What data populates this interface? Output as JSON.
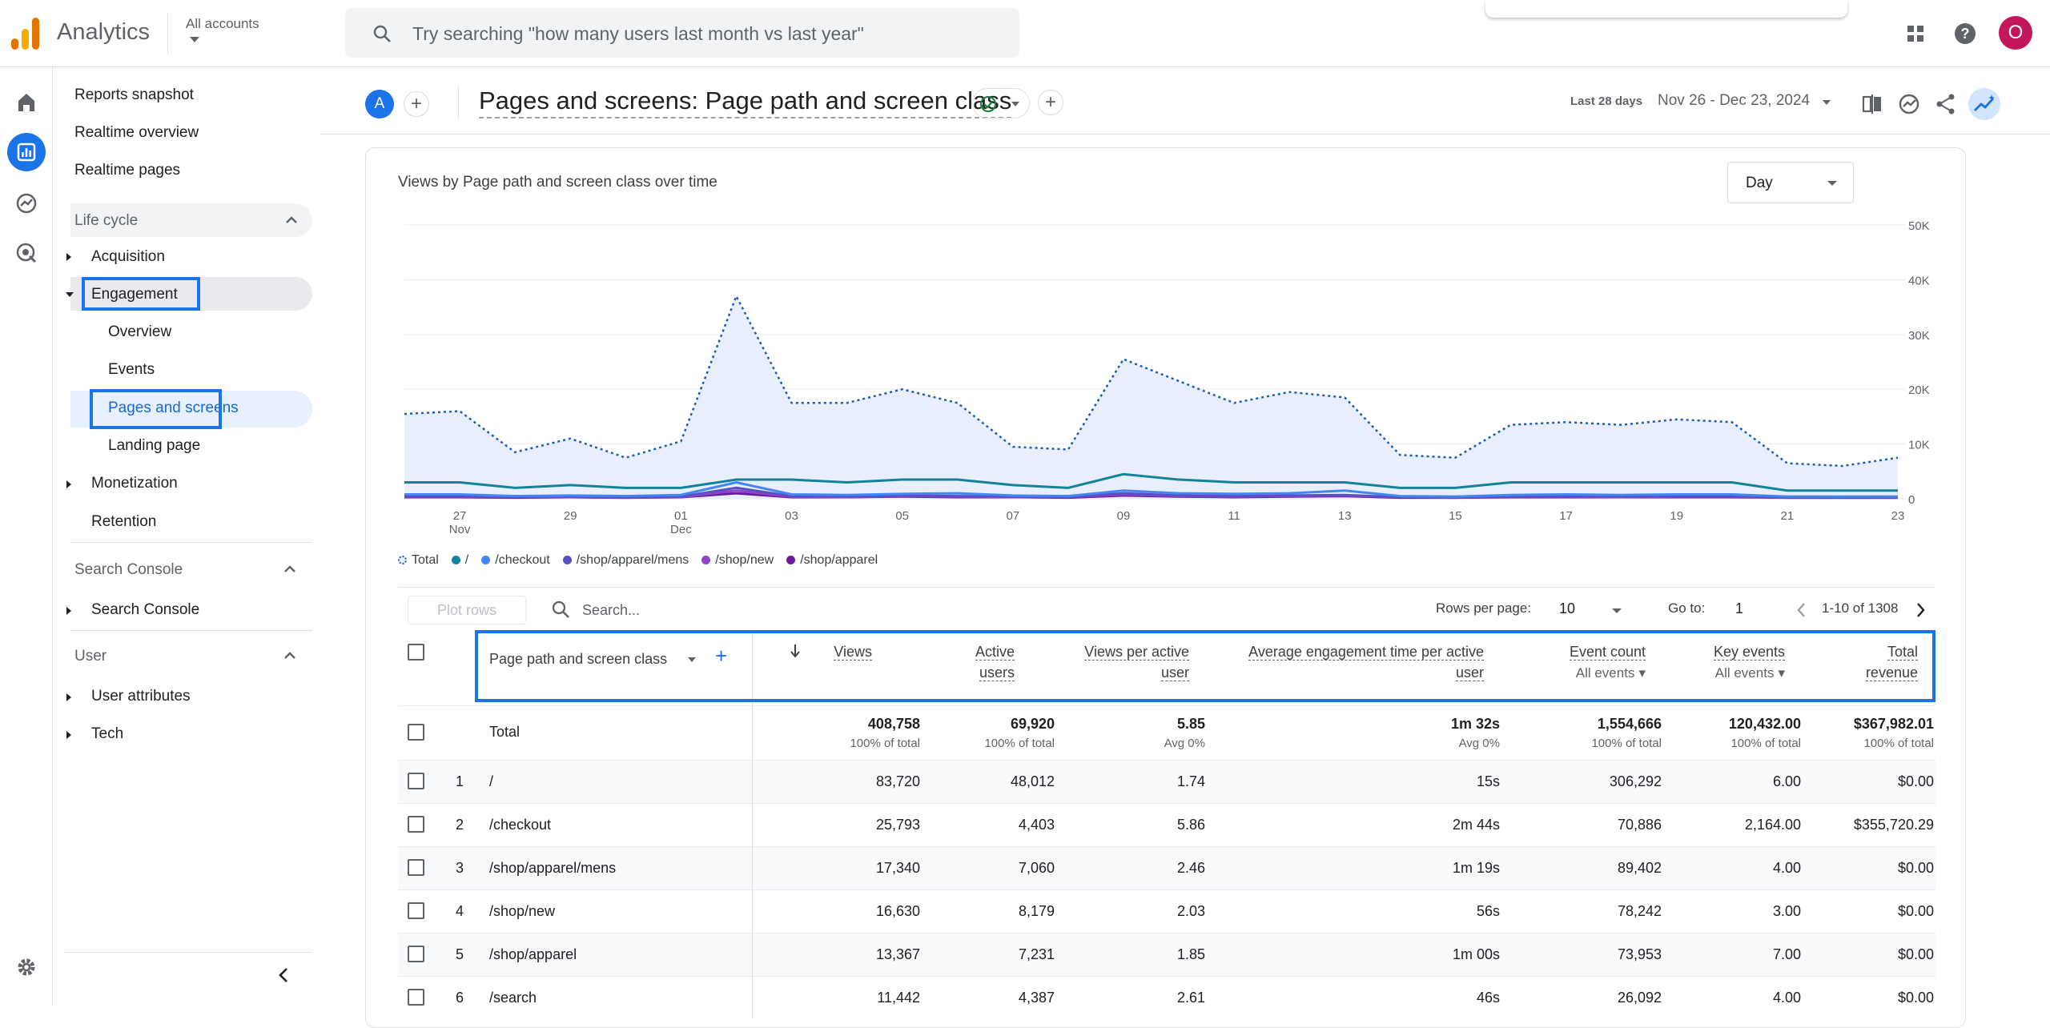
{
  "header": {
    "app_name": "Analytics",
    "account_label": "All accounts",
    "search_placeholder": "Try searching \"how many users last month vs last year\"",
    "avatar_letter": "O"
  },
  "sidebar": {
    "top_items": [
      "Reports snapshot",
      "Realtime overview",
      "Realtime pages"
    ],
    "lifecycle_label": "Life cycle",
    "acquisition": "Acquisition",
    "engagement": "Engagement",
    "engagement_children": [
      "Overview",
      "Events",
      "Pages and screens",
      "Landing page"
    ],
    "monetization": "Monetization",
    "retention": "Retention",
    "search_console_section": "Search Console",
    "search_console_item": "Search Console",
    "user_section": "User",
    "user_attributes": "User attributes",
    "tech": "Tech"
  },
  "report": {
    "compare_letter": "A",
    "title": "Pages and screens: Page path and screen class",
    "date_label": "Last 28 days",
    "date_range": "Nov 26 - Dec 23, 2024"
  },
  "chart_data": {
    "type": "area",
    "title": "Views by Page path and screen class over time",
    "granularity": "Day",
    "y_ticks": [
      "50K",
      "40K",
      "30K",
      "20K",
      "10K",
      "0"
    ],
    "ylim": [
      0,
      50000
    ],
    "x_ticks": [
      {
        "label": "27",
        "sub": "Nov",
        "day": 1
      },
      {
        "label": "29",
        "sub": "",
        "day": 3
      },
      {
        "label": "01",
        "sub": "Dec",
        "day": 5
      },
      {
        "label": "03",
        "sub": "",
        "day": 7
      },
      {
        "label": "05",
        "sub": "",
        "day": 9
      },
      {
        "label": "07",
        "sub": "",
        "day": 11
      },
      {
        "label": "09",
        "sub": "",
        "day": 13
      },
      {
        "label": "11",
        "sub": "",
        "day": 15
      },
      {
        "label": "13",
        "sub": "",
        "day": 17
      },
      {
        "label": "15",
        "sub": "",
        "day": 19
      },
      {
        "label": "17",
        "sub": "",
        "day": 21
      },
      {
        "label": "19",
        "sub": "",
        "day": 23
      },
      {
        "label": "21",
        "sub": "",
        "day": 25
      },
      {
        "label": "23",
        "sub": "",
        "day": 27
      }
    ],
    "series": [
      {
        "name": "Total",
        "color": "#1a5fb4",
        "values": [
          15500,
          16000,
          8500,
          11000,
          7500,
          10500,
          37000,
          17500,
          17500,
          20000,
          17500,
          9500,
          9000,
          25500,
          21500,
          17500,
          19500,
          18500,
          8000,
          7500,
          13500,
          14000,
          13500,
          14500,
          14000,
          6500,
          6000,
          7500
        ]
      },
      {
        "name": "/",
        "color": "#12839a",
        "values": [
          3000,
          3000,
          2000,
          2500,
          2000,
          2000,
          3500,
          3500,
          3000,
          3500,
          3500,
          2500,
          2000,
          4500,
          3500,
          3000,
          3000,
          3000,
          2000,
          2000,
          3000,
          3000,
          3000,
          3000,
          3000,
          1500,
          1500,
          1500
        ]
      },
      {
        "name": "/checkout",
        "color": "#4285f4",
        "values": [
          800,
          800,
          500,
          600,
          500,
          700,
          3000,
          800,
          700,
          900,
          1000,
          600,
          500,
          1500,
          1000,
          900,
          1000,
          1500,
          500,
          400,
          700,
          800,
          700,
          800,
          800,
          400,
          400,
          400
        ]
      },
      {
        "name": "/shop/apparel/mens",
        "color": "#5b4fc4",
        "values": [
          500,
          500,
          300,
          400,
          300,
          400,
          2000,
          500,
          400,
          600,
          500,
          400,
          300,
          1000,
          600,
          500,
          600,
          700,
          300,
          300,
          400,
          500,
          400,
          500,
          500,
          300,
          200,
          300
        ]
      },
      {
        "name": "/shop/new",
        "color": "#8e44c9",
        "values": [
          400,
          400,
          300,
          300,
          200,
          300,
          1500,
          400,
          300,
          500,
          400,
          300,
          300,
          800,
          500,
          400,
          500,
          600,
          300,
          200,
          400,
          400,
          300,
          400,
          400,
          200,
          200,
          200
        ]
      },
      {
        "name": "/shop/apparel",
        "color": "#6a1b9a",
        "values": [
          300,
          300,
          200,
          300,
          200,
          300,
          1000,
          300,
          300,
          400,
          300,
          300,
          200,
          600,
          400,
          300,
          400,
          500,
          200,
          200,
          300,
          300,
          300,
          300,
          300,
          200,
          200,
          200
        ]
      }
    ]
  },
  "table": {
    "plot_rows": "Plot rows",
    "search_placeholder": "Search...",
    "rows_per_page_label": "Rows per page:",
    "rows_per_page": "10",
    "goto_label": "Go to:",
    "goto_value": "1",
    "pager": "1-10 of 1308",
    "dim_header": "Page path and screen class",
    "columns": [
      {
        "label1": "Views",
        "label2": "",
        "sub": ""
      },
      {
        "label1": "Active",
        "label2": "users",
        "sub": ""
      },
      {
        "label1": "Views per active",
        "label2": "user",
        "sub": ""
      },
      {
        "label1": "Average engagement time per active",
        "label2": "user",
        "sub": ""
      },
      {
        "label1": "Event count",
        "label2": "",
        "sub": "All events"
      },
      {
        "label1": "Key events",
        "label2": "",
        "sub": "All events"
      },
      {
        "label1": "Total",
        "label2": "revenue",
        "sub": ""
      }
    ],
    "total": {
      "label": "Total",
      "values": [
        "408,758",
        "69,920",
        "5.85",
        "1m 32s",
        "1,554,666",
        "120,432.00",
        "$367,982.01"
      ],
      "subs": [
        "100% of total",
        "100% of total",
        "Avg 0%",
        "Avg 0%",
        "100% of total",
        "100% of total",
        "100% of total"
      ]
    },
    "rows": [
      {
        "n": "1",
        "page": "/",
        "values": [
          "83,720",
          "48,012",
          "1.74",
          "15s",
          "306,292",
          "6.00",
          "$0.00"
        ]
      },
      {
        "n": "2",
        "page": "/checkout",
        "values": [
          "25,793",
          "4,403",
          "5.86",
          "2m 44s",
          "70,886",
          "2,164.00",
          "$355,720.29"
        ]
      },
      {
        "n": "3",
        "page": "/shop/apparel/mens",
        "values": [
          "17,340",
          "7,060",
          "2.46",
          "1m 19s",
          "89,402",
          "4.00",
          "$0.00"
        ]
      },
      {
        "n": "4",
        "page": "/shop/new",
        "values": [
          "16,630",
          "8,179",
          "2.03",
          "56s",
          "78,242",
          "3.00",
          "$0.00"
        ]
      },
      {
        "n": "5",
        "page": "/shop/apparel",
        "values": [
          "13,367",
          "7,231",
          "1.85",
          "1m 00s",
          "73,953",
          "7.00",
          "$0.00"
        ]
      },
      {
        "n": "6",
        "page": "/search",
        "values": [
          "11,442",
          "4,387",
          "2.61",
          "46s",
          "26,092",
          "4.00",
          "$0.00"
        ]
      }
    ]
  },
  "colors": {
    "accent": "#1a73e8",
    "highlight": "#1a73e8"
  }
}
